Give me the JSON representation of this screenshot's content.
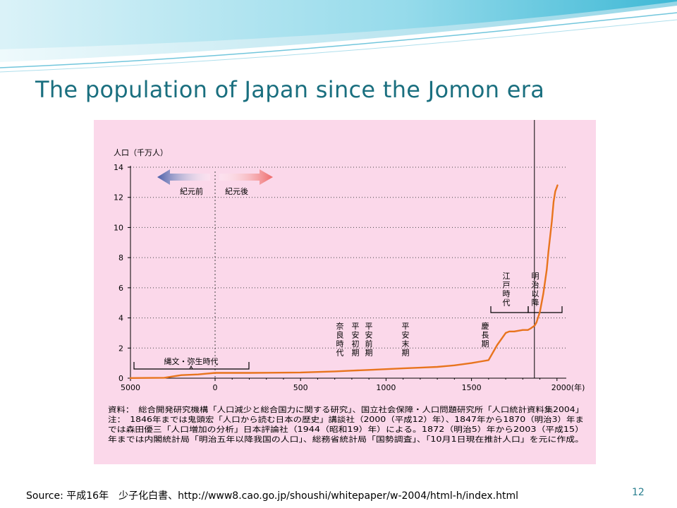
{
  "slide": {
    "title": "The population of Japan since the Jomon era",
    "source": "Source: 平成16年　少子化白書、http://www8.cao.go.jp/shoushi/whitepaper/w-2004/html-h/index.html",
    "page_number": "12"
  },
  "chart_data": {
    "type": "line",
    "ylabel": "人口（千万人）",
    "xlabel": "",
    "y_ticks": [
      "14",
      "12",
      "10",
      "8",
      "6",
      "4",
      "2",
      "0"
    ],
    "x_ticks": [
      "5000",
      "0",
      "500",
      "1000",
      "1500",
      "2000(年)"
    ],
    "xlim": [
      -5000,
      2100
    ],
    "ylim": [
      0,
      14
    ],
    "grid": true,
    "series": [
      {
        "x": [
          -5000,
          -3000,
          -2000,
          -1000,
          -500,
          0,
          200,
          500,
          700,
          800,
          900,
          1000,
          1100,
          1200,
          1300,
          1400,
          1500,
          1550,
          1600,
          1650,
          1700,
          1721,
          1750,
          1800,
          1830,
          1846,
          1870,
          1880,
          1900,
          1920,
          1940,
          1950,
          1960,
          1970,
          1980,
          1990,
          2000,
          2003
        ],
        "values": [
          0.01,
          0.03,
          0.2,
          0.25,
          0.3,
          0.35,
          0.35,
          0.38,
          0.45,
          0.5,
          0.55,
          0.6,
          0.65,
          0.7,
          0.75,
          0.85,
          1.0,
          1.1,
          1.2,
          2.2,
          3.0,
          3.1,
          3.1,
          3.2,
          3.2,
          3.3,
          3.5,
          3.7,
          4.4,
          5.6,
          7.2,
          8.4,
          9.4,
          10.4,
          11.7,
          12.4,
          12.7,
          12.8
        ]
      }
    ],
    "era_markers": {
      "bce": "紀元前",
      "ce": "紀元後",
      "jomon_yayoi": "縄文・弥生時代",
      "nara": "奈良時代",
      "heian_early": "平安初期",
      "heian_mid": "平安前期",
      "heian_late": "平安末期",
      "keicho": "慶長期",
      "edo": "江戸時代",
      "meiji": "明治以降"
    },
    "notes": [
      "資料：　総合開発研究機構「人口減少と総合国力に関する研究」、国立社会保障・人口問題研究所「人口統計資料集2004」",
      "注：　1846年までは鬼頭宏「人口から読む日本の歴史」講談社（2000（平成12）年）、1847年から1870（明治3）年ま",
      "では森田優三「人口増加の分析」日本評論社（1944（昭和19）年）による。1872（明治5）年から2003（平成15）",
      "年までは内閣統計局「明治五年以降我国の人口」、総務省統計局「国勢調査」、「10月1日現在推計人口」を元に作成。"
    ],
    "colors": {
      "background": "#fbd8ea",
      "line": "#e8741e",
      "grid": "#444444",
      "arrow_bce": "#4a5ea8",
      "arrow_ce": "#ee6a6a"
    }
  }
}
